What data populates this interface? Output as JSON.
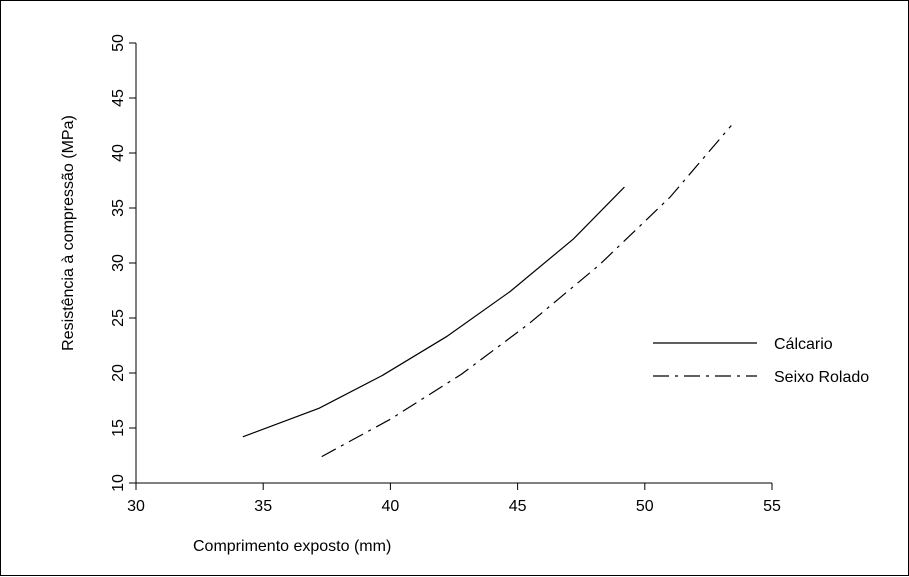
{
  "chart_data": {
    "type": "line",
    "title": "",
    "xlabel": "Comprimento exposto (mm)",
    "ylabel": "Resistência à compressão (MPa)",
    "xlim": [
      30,
      55
    ],
    "ylim": [
      10,
      50
    ],
    "xticks": [
      30,
      35,
      40,
      45,
      50,
      55
    ],
    "yticks": [
      10,
      15,
      20,
      25,
      30,
      35,
      40,
      45,
      50
    ],
    "grid": false,
    "legend_position": "right",
    "series": [
      {
        "name": "Cálcario",
        "line_style": "solid",
        "color": "#000000",
        "x": [
          34.2,
          37.2,
          39.7,
          42.2,
          44.7,
          47.2,
          49.2
        ],
        "y": [
          14.2,
          16.8,
          19.8,
          23.3,
          27.4,
          32.2,
          36.9
        ]
      },
      {
        "name": "Seixo Rolado",
        "line_style": "dash-dot",
        "color": "#000000",
        "x": [
          37.3,
          40.0,
          42.8,
          45.4,
          48.2,
          51.0,
          53.4
        ],
        "y": [
          12.4,
          15.8,
          19.9,
          24.4,
          29.8,
          36.0,
          42.5
        ]
      }
    ]
  }
}
